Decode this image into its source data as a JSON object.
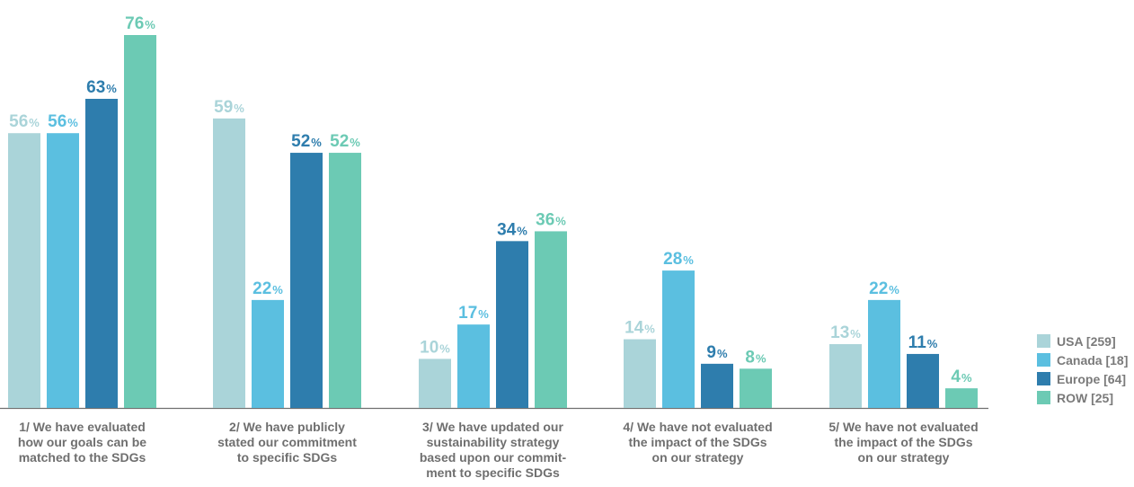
{
  "chart_data": {
    "type": "bar",
    "categories": [
      [
        "1/ We have evaluated",
        "how our goals can be",
        "matched to the SDGs"
      ],
      [
        "2/ We have publicly",
        "stated our commitment",
        "to specific SDGs"
      ],
      [
        "3/ We have updated our",
        "sustainability strategy",
        "based upon our commit-",
        "ment to specific SDGs"
      ],
      [
        "4/ We have not evaluated",
        "the impact of the SDGs",
        "on our strategy"
      ],
      [
        "5/ We have not evaluated",
        "the impact of the SDGs",
        "on our strategy"
      ]
    ],
    "series": [
      {
        "name": "USA [259]",
        "color": "#aad4d9",
        "values": [
          56,
          59,
          10,
          14,
          13
        ]
      },
      {
        "name": "Canada [18]",
        "color": "#5bbfe0",
        "values": [
          56,
          22,
          17,
          28,
          22
        ]
      },
      {
        "name": "Europe [64]",
        "color": "#2e7dad",
        "values": [
          63,
          52,
          34,
          9,
          11
        ]
      },
      {
        "name": "ROW [25]",
        "color": "#6ccab4",
        "values": [
          76,
          52,
          36,
          8,
          4
        ]
      }
    ],
    "value_suffix": "%",
    "ylim": [
      0,
      76
    ],
    "grid": false,
    "legend_position": "right-bottom"
  }
}
